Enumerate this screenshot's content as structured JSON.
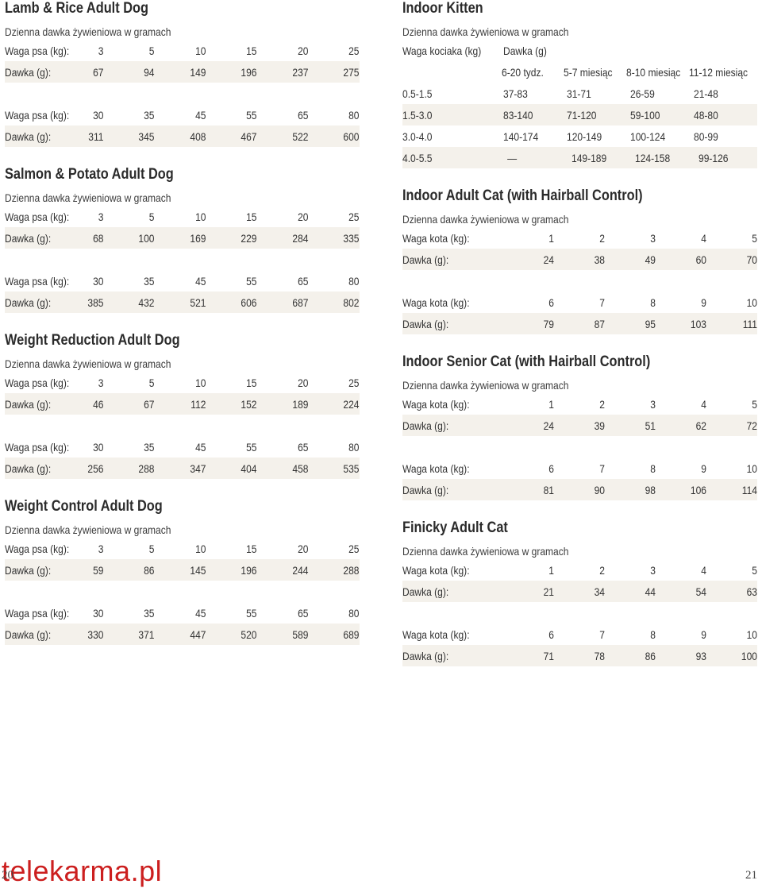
{
  "left": [
    {
      "title": "Lamb & Rice Adult Dog",
      "subtitle": "Dzienna dawka żywieniowa w gramach",
      "groups": [
        {
          "weight_label": "Waga psa (kg):",
          "weights": [
            "3",
            "5",
            "10",
            "15",
            "20",
            "25"
          ],
          "dose_label": "Dawka (g):",
          "doses": [
            "67",
            "94",
            "149",
            "196",
            "237",
            "275"
          ]
        },
        {
          "weight_label": "Waga psa (kg):",
          "weights": [
            "30",
            "35",
            "45",
            "55",
            "65",
            "80"
          ],
          "dose_label": "Dawka (g):",
          "doses": [
            "311",
            "345",
            "408",
            "467",
            "522",
            "600"
          ]
        }
      ]
    },
    {
      "title": "Salmon & Potato Adult Dog",
      "subtitle": "Dzienna dawka żywieniowa w gramach",
      "groups": [
        {
          "weight_label": "Waga psa (kg):",
          "weights": [
            "3",
            "5",
            "10",
            "15",
            "20",
            "25"
          ],
          "dose_label": "Dawka (g):",
          "doses": [
            "68",
            "100",
            "169",
            "229",
            "284",
            "335"
          ]
        },
        {
          "weight_label": "Waga psa (kg):",
          "weights": [
            "30",
            "35",
            "45",
            "55",
            "65",
            "80"
          ],
          "dose_label": "Dawka (g):",
          "doses": [
            "385",
            "432",
            "521",
            "606",
            "687",
            "802"
          ]
        }
      ]
    },
    {
      "title": "Weight Reduction Adult Dog",
      "subtitle": "Dzienna dawka żywieniowa w gramach",
      "groups": [
        {
          "weight_label": "Waga psa (kg):",
          "weights": [
            "3",
            "5",
            "10",
            "15",
            "20",
            "25"
          ],
          "dose_label": "Dawka (g):",
          "doses": [
            "46",
            "67",
            "112",
            "152",
            "189",
            "224"
          ]
        },
        {
          "weight_label": "Waga psa (kg):",
          "weights": [
            "30",
            "35",
            "45",
            "55",
            "65",
            "80"
          ],
          "dose_label": "Dawka (g):",
          "doses": [
            "256",
            "288",
            "347",
            "404",
            "458",
            "535"
          ]
        }
      ]
    },
    {
      "title": "Weight Control Adult Dog",
      "subtitle": "Dzienna dawka żywieniowa w gramach",
      "groups": [
        {
          "weight_label": "Waga psa (kg):",
          "weights": [
            "3",
            "5",
            "10",
            "15",
            "20",
            "25"
          ],
          "dose_label": "Dawka (g):",
          "doses": [
            "59",
            "86",
            "145",
            "196",
            "244",
            "288"
          ]
        },
        {
          "weight_label": "Waga psa (kg):",
          "weights": [
            "30",
            "35",
            "45",
            "55",
            "65",
            "80"
          ],
          "dose_label": "Dawka (g):",
          "doses": [
            "330",
            "371",
            "447",
            "520",
            "589",
            "689"
          ]
        }
      ]
    }
  ],
  "kitten": {
    "title": "Indoor Kitten",
    "subtitle": "Dzienna dawka żywieniowa w gramach",
    "header1": [
      "Waga kociaka (kg)",
      "Dawka (g)"
    ],
    "header2": [
      "6-20 tydz.",
      "5-7 miesiąc",
      "8-10 miesiąc",
      "11-12 miesiąc"
    ],
    "rows": [
      [
        "0.5-1.5",
        "37-83",
        "31-71",
        "26-59",
        "21-48"
      ],
      [
        "1.5-3.0",
        "83-140",
        "71-120",
        "59-100",
        "48-80"
      ],
      [
        "3.0-4.0",
        "140-174",
        "120-149",
        "100-124",
        "80-99"
      ],
      [
        "4.0-5.5",
        "—",
        "149-189",
        "124-158",
        "99-126"
      ]
    ]
  },
  "right": [
    {
      "title": "Indoor Adult Cat (with Hairball Control)",
      "subtitle": "Dzienna dawka żywieniowa w gramach",
      "groups": [
        {
          "weight_label": "Waga kota (kg):",
          "weights": [
            "1",
            "2",
            "3",
            "4",
            "5"
          ],
          "dose_label": "Dawka (g):",
          "doses": [
            "24",
            "38",
            "49",
            "60",
            "70"
          ]
        },
        {
          "weight_label": "Waga kota (kg):",
          "weights": [
            "6",
            "7",
            "8",
            "9",
            "10"
          ],
          "dose_label": "Dawka (g):",
          "doses": [
            "79",
            "87",
            "95",
            "103",
            "111"
          ]
        }
      ]
    },
    {
      "title": "Indoor Senior Cat (with Hairball Control)",
      "subtitle": "Dzienna dawka żywieniowa w gramach",
      "groups": [
        {
          "weight_label": "Waga kota (kg):",
          "weights": [
            "1",
            "2",
            "3",
            "4",
            "5"
          ],
          "dose_label": "Dawka (g):",
          "doses": [
            "24",
            "39",
            "51",
            "62",
            "72"
          ]
        },
        {
          "weight_label": "Waga kota (kg):",
          "weights": [
            "6",
            "7",
            "8",
            "9",
            "10"
          ],
          "dose_label": "Dawka (g):",
          "doses": [
            "81",
            "90",
            "98",
            "106",
            "114"
          ]
        }
      ]
    },
    {
      "title": "Finicky Adult Cat",
      "subtitle": "Dzienna dawka żywieniowa w gramach",
      "groups": [
        {
          "weight_label": "Waga kota (kg):",
          "weights": [
            "1",
            "2",
            "3",
            "4",
            "5"
          ],
          "dose_label": "Dawka (g):",
          "doses": [
            "21",
            "34",
            "44",
            "54",
            "63"
          ]
        },
        {
          "weight_label": "Waga kota (kg):",
          "weights": [
            "6",
            "7",
            "8",
            "9",
            "10"
          ],
          "dose_label": "Dawka (g):",
          "doses": [
            "71",
            "78",
            "86",
            "93",
            "100"
          ]
        }
      ]
    }
  ],
  "footer": {
    "brand": "telekarma.pl",
    "page_left": "20",
    "page_right": "21",
    "brand_color": "#cc1f1f"
  }
}
